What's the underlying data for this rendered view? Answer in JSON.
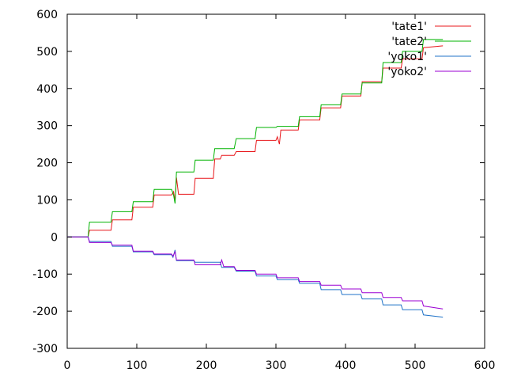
{
  "chart_data": {
    "type": "line",
    "title": "",
    "xlabel": "",
    "ylabel": "",
    "xlim": [
      0,
      600
    ],
    "ylim": [
      -300,
      600
    ],
    "xticks": [
      0,
      100,
      200,
      300,
      400,
      500,
      600
    ],
    "yticks": [
      -300,
      -200,
      -100,
      0,
      100,
      200,
      300,
      400,
      500,
      600
    ],
    "grid": false,
    "legend_position": "top-right",
    "series": [
      {
        "name": "'tate1'",
        "color": "#e8171b",
        "points": [
          [
            0,
            0
          ],
          [
            30,
            0
          ],
          [
            32,
            18
          ],
          [
            63,
            18
          ],
          [
            65,
            46
          ],
          [
            93,
            46
          ],
          [
            95,
            80
          ],
          [
            123,
            80
          ],
          [
            125,
            113
          ],
          [
            150,
            113
          ],
          [
            153,
            122
          ],
          [
            155,
            95
          ],
          [
            157,
            160
          ],
          [
            160,
            115
          ],
          [
            182,
            115
          ],
          [
            184,
            158
          ],
          [
            210,
            158
          ],
          [
            212,
            210
          ],
          [
            220,
            210
          ],
          [
            222,
            220
          ],
          [
            240,
            220
          ],
          [
            243,
            230
          ],
          [
            270,
            230
          ],
          [
            272,
            260
          ],
          [
            300,
            260
          ],
          [
            302,
            270
          ],
          [
            305,
            250
          ],
          [
            307,
            288
          ],
          [
            332,
            288
          ],
          [
            334,
            315
          ],
          [
            363,
            315
          ],
          [
            365,
            348
          ],
          [
            393,
            348
          ],
          [
            395,
            380
          ],
          [
            422,
            380
          ],
          [
            424,
            418
          ],
          [
            452,
            418
          ],
          [
            454,
            455
          ],
          [
            480,
            455
          ],
          [
            482,
            480
          ],
          [
            510,
            480
          ],
          [
            512,
            510
          ],
          [
            540,
            515
          ]
        ]
      },
      {
        "name": "'tate2'",
        "color": "#00b300",
        "points": [
          [
            0,
            0
          ],
          [
            30,
            0
          ],
          [
            32,
            40
          ],
          [
            63,
            40
          ],
          [
            65,
            68
          ],
          [
            93,
            68
          ],
          [
            95,
            95
          ],
          [
            123,
            95
          ],
          [
            125,
            128
          ],
          [
            150,
            128
          ],
          [
            153,
            112
          ],
          [
            155,
            90
          ],
          [
            157,
            175
          ],
          [
            182,
            175
          ],
          [
            184,
            207
          ],
          [
            210,
            207
          ],
          [
            212,
            238
          ],
          [
            240,
            238
          ],
          [
            243,
            265
          ],
          [
            270,
            265
          ],
          [
            272,
            295
          ],
          [
            300,
            295
          ],
          [
            302,
            298
          ],
          [
            332,
            298
          ],
          [
            334,
            324
          ],
          [
            363,
            324
          ],
          [
            365,
            356
          ],
          [
            393,
            356
          ],
          [
            395,
            385
          ],
          [
            422,
            385
          ],
          [
            424,
            415
          ],
          [
            452,
            415
          ],
          [
            454,
            470
          ],
          [
            480,
            470
          ],
          [
            482,
            500
          ],
          [
            510,
            500
          ],
          [
            512,
            532
          ],
          [
            540,
            532
          ]
        ]
      },
      {
        "name": "'yoko1'",
        "color": "#2073c8",
        "points": [
          [
            0,
            0
          ],
          [
            30,
            0
          ],
          [
            32,
            -12
          ],
          [
            63,
            -12
          ],
          [
            65,
            -25
          ],
          [
            93,
            -25
          ],
          [
            95,
            -40
          ],
          [
            123,
            -40
          ],
          [
            125,
            -48
          ],
          [
            150,
            -48
          ],
          [
            152,
            -55
          ],
          [
            155,
            -35
          ],
          [
            157,
            -64
          ],
          [
            182,
            -64
          ],
          [
            184,
            -68
          ],
          [
            220,
            -68
          ],
          [
            222,
            -82
          ],
          [
            240,
            -82
          ],
          [
            243,
            -92
          ],
          [
            270,
            -92
          ],
          [
            272,
            -105
          ],
          [
            300,
            -105
          ],
          [
            302,
            -115
          ],
          [
            332,
            -115
          ],
          [
            334,
            -125
          ],
          [
            363,
            -125
          ],
          [
            365,
            -142
          ],
          [
            393,
            -142
          ],
          [
            395,
            -155
          ],
          [
            422,
            -155
          ],
          [
            424,
            -167
          ],
          [
            452,
            -167
          ],
          [
            454,
            -183
          ],
          [
            480,
            -183
          ],
          [
            482,
            -196
          ],
          [
            510,
            -196
          ],
          [
            512,
            -210
          ],
          [
            540,
            -216
          ]
        ]
      },
      {
        "name": "'yoko2'",
        "color": "#9b00d3",
        "points": [
          [
            0,
            0
          ],
          [
            30,
            0
          ],
          [
            32,
            -15
          ],
          [
            63,
            -15
          ],
          [
            65,
            -22
          ],
          [
            93,
            -22
          ],
          [
            95,
            -38
          ],
          [
            123,
            -38
          ],
          [
            125,
            -46
          ],
          [
            150,
            -46
          ],
          [
            152,
            -52
          ],
          [
            155,
            -40
          ],
          [
            157,
            -62
          ],
          [
            182,
            -62
          ],
          [
            184,
            -75
          ],
          [
            220,
            -75
          ],
          [
            222,
            -62
          ],
          [
            225,
            -80
          ],
          [
            240,
            -80
          ],
          [
            243,
            -90
          ],
          [
            270,
            -90
          ],
          [
            272,
            -100
          ],
          [
            300,
            -100
          ],
          [
            302,
            -110
          ],
          [
            332,
            -110
          ],
          [
            334,
            -120
          ],
          [
            363,
            -120
          ],
          [
            365,
            -130
          ],
          [
            393,
            -130
          ],
          [
            395,
            -140
          ],
          [
            422,
            -140
          ],
          [
            424,
            -150
          ],
          [
            452,
            -150
          ],
          [
            454,
            -163
          ],
          [
            480,
            -163
          ],
          [
            482,
            -172
          ],
          [
            510,
            -172
          ],
          [
            512,
            -186
          ],
          [
            540,
            -194
          ]
        ]
      }
    ]
  }
}
